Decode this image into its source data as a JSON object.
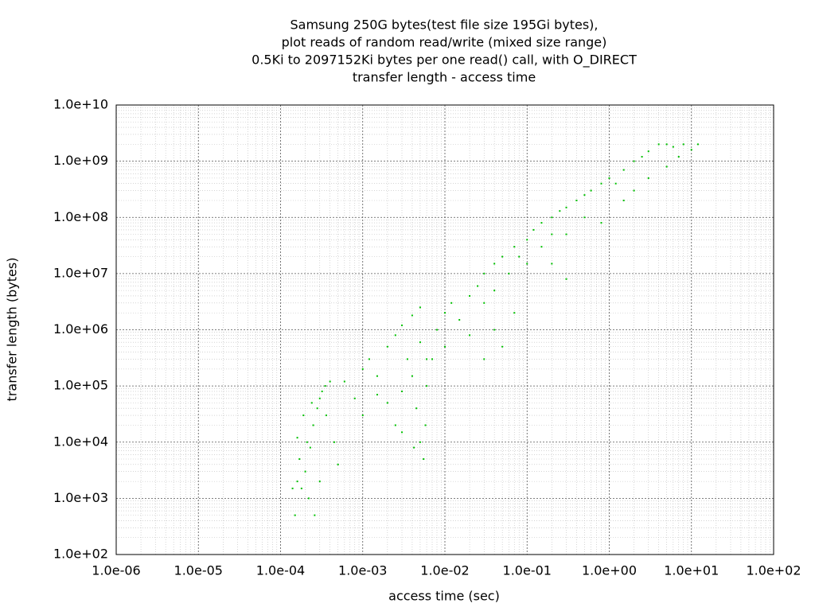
{
  "chart_data": {
    "type": "scatter",
    "title": [
      "Samsung 250G bytes(test file size 195Gi bytes),",
      "plot reads of random read/write (mixed size range)",
      "0.5Ki to 2097152Ki bytes per one read() call, with O_DIRECT",
      "transfer length - access time"
    ],
    "x_label": "access time (sec)",
    "y_label": "transfer length (bytes)",
    "log_x": true,
    "log_y": true,
    "grid": true,
    "minor_grid": true,
    "color": "#00c000",
    "xlim": [
      1e-06,
      100
    ],
    "ylim": [
      100,
      10000000000.0
    ],
    "xticks": [
      {
        "value": 1e-06,
        "label": "1.0e-06"
      },
      {
        "value": 1e-05,
        "label": "1.0e-05"
      },
      {
        "value": 0.0001,
        "label": "1.0e-04"
      },
      {
        "value": 0.001,
        "label": "1.0e-03"
      },
      {
        "value": 0.01,
        "label": "1.0e-02"
      },
      {
        "value": 0.1,
        "label": "1.0e-01"
      },
      {
        "value": 1,
        "label": "1.0e+00"
      },
      {
        "value": 10,
        "label": "1.0e+01"
      },
      {
        "value": 100,
        "label": "1.0e+02"
      }
    ],
    "yticks": [
      {
        "value": 100,
        "label": "1.0e+02"
      },
      {
        "value": 1000,
        "label": "1.0e+03"
      },
      {
        "value": 10000,
        "label": "1.0e+04"
      },
      {
        "value": 100000,
        "label": "1.0e+05"
      },
      {
        "value": 1000000,
        "label": "1.0e+06"
      },
      {
        "value": 10000000,
        "label": "1.0e+07"
      },
      {
        "value": 100000000,
        "label": "1.0e+08"
      },
      {
        "value": 1000000000,
        "label": "1.0e+09"
      },
      {
        "value": 10000000000,
        "label": "1.0e+10"
      }
    ],
    "x": [
      0.00015,
      0.00016,
      0.00018,
      0.00017,
      0.0002,
      0.00021,
      0.00023,
      0.00025,
      0.00028,
      0.0003,
      0.00032,
      0.00035,
      0.0004,
      0.00026,
      0.0003,
      0.00022,
      0.00019,
      0.00024,
      0.00036,
      0.00045,
      0.0005,
      0.00014,
      0.00016,
      0.0006,
      0.001,
      0.0012,
      0.0015,
      0.002,
      0.0025,
      0.003,
      0.004,
      0.005,
      0.002,
      0.0025,
      0.003,
      0.0035,
      0.004,
      0.0045,
      0.005,
      0.0055,
      0.0058,
      0.006,
      0.006,
      0.005,
      0.0042,
      0.003,
      0.0015,
      0.001,
      0.0008,
      0.007,
      0.008,
      0.01,
      0.01,
      0.012,
      0.015,
      0.02,
      0.02,
      0.025,
      0.03,
      0.03,
      0.04,
      0.04,
      0.05,
      0.06,
      0.07,
      0.08,
      0.1,
      0.1,
      0.12,
      0.15,
      0.15,
      0.2,
      0.2,
      0.25,
      0.3,
      0.4,
      0.5,
      0.6,
      0.8,
      1,
      1.2,
      1.5,
      2,
      2.5,
      3,
      4,
      5,
      6,
      8,
      10,
      12,
      7,
      5,
      3,
      2,
      1.5,
      0.8,
      0.5,
      0.3,
      0.2,
      0.3,
      0.07,
      0.05,
      0.03,
      0.04
    ],
    "values": [
      500,
      2000,
      1500,
      5000,
      3000,
      10000,
      8000,
      20000,
      40000,
      60000,
      80000,
      100000,
      120000,
      500,
      2000,
      1000,
      30000,
      50000,
      30000,
      10000,
      4000,
      1500,
      12000,
      120000,
      200000,
      300000,
      150000,
      500000,
      800000,
      1200000,
      1800000,
      2500000,
      50000,
      20000,
      80000,
      300000,
      150000,
      40000,
      10000,
      5000,
      20000,
      100000,
      300000,
      600000,
      8000,
      15000,
      70000,
      30000,
      60000,
      300000,
      1000000,
      500000,
      2000000,
      3000000,
      1500000,
      4000000,
      800000,
      6000000,
      3000000,
      10000000,
      15000000,
      5000000,
      20000000,
      10000000,
      30000000,
      20000000,
      40000000,
      15000000,
      60000000,
      30000000,
      80000000,
      100000000,
      50000000,
      130000000,
      150000000,
      200000000,
      250000000,
      300000000,
      400000000,
      500000000,
      400000000,
      700000000,
      1000000000,
      1200000000,
      1500000000,
      2000000000,
      2000000000,
      1800000000,
      2000000000,
      1600000000,
      2000000000,
      1200000000,
      800000000,
      500000000,
      300000000,
      200000000,
      80000000,
      100000000,
      50000000,
      15000000,
      8000000,
      2000000,
      500000,
      300000,
      1000000
    ]
  }
}
